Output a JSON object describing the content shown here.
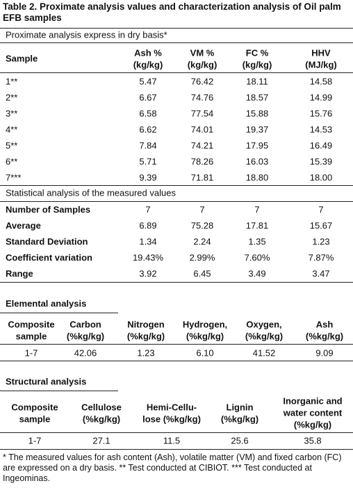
{
  "title": "Table 2. Proximate analysis values and characterization analysis of Oil palm EFB samples",
  "proximate": {
    "caption": "Proximate analysis express in dry basis*",
    "header": [
      [
        "Sample"
      ],
      [
        "Ash %",
        "(kg/kg)"
      ],
      [
        "VM %",
        "(kg/kg)"
      ],
      [
        "FC %",
        "(kg/kg)"
      ],
      [
        "HHV",
        "(MJ/kg)"
      ]
    ],
    "rows": [
      [
        "1**",
        "5.47",
        "76.42",
        "18.11",
        "14.58"
      ],
      [
        "2**",
        "6.67",
        "74.76",
        "18.57",
        "14.99"
      ],
      [
        "3**",
        "6.58",
        "77.54",
        "15.88",
        "15.76"
      ],
      [
        "4**",
        "6.62",
        "74.01",
        "19.37",
        "14.53"
      ],
      [
        "5**",
        "7.84",
        "74.21",
        "17.95",
        "16.49"
      ],
      [
        "6**",
        "5.71",
        "78.26",
        "16.03",
        "15.39"
      ],
      [
        "7***",
        "9.39",
        "71.81",
        "18.80",
        "18.00"
      ]
    ]
  },
  "statistics": {
    "caption": "Statistical analysis of the measured values",
    "rows": [
      [
        "Number of Samples",
        "7",
        "7",
        "7",
        "7"
      ],
      [
        "Average",
        "6.89",
        "75.28",
        "17.81",
        "15.67"
      ],
      [
        "Standard Deviation",
        "1.34",
        "2.24",
        "1.35",
        "1.23"
      ],
      [
        "Coefficient variation",
        "19.43%",
        "2.99%",
        "7.60%",
        "7.87%"
      ],
      [
        "Range",
        "3.92",
        "6.45",
        "3.49",
        "3.47"
      ]
    ]
  },
  "elemental": {
    "title": "Elemental analysis",
    "header": [
      [
        "Composite",
        "sample"
      ],
      [
        "Carbon",
        "(%kg/kg)"
      ],
      [
        "Nitrogen",
        "(%kg/kg)"
      ],
      [
        "Hydrogen,",
        "(%kg/kg)"
      ],
      [
        "Oxygen,",
        "(%kg/kg)"
      ],
      [
        "Ash",
        "(%kg/kg)"
      ]
    ],
    "rows": [
      [
        "1-7",
        "42.06",
        "1.23",
        "6.10",
        "41.52",
        "9.09"
      ]
    ]
  },
  "structural": {
    "title": "Structural analysis",
    "header": [
      [
        "Composite",
        "sample"
      ],
      [
        "Cellulose",
        "(%kg/kg)"
      ],
      [
        "Hemi-Cellu-",
        "lose (%kg/kg)"
      ],
      [
        "Lignin",
        "(%kg/kg)"
      ],
      [
        "Inorganic and",
        "water content",
        "(%kg/kg)"
      ]
    ],
    "rows": [
      [
        "1-7",
        "27.1",
        "11.5",
        "25.6",
        "35.8"
      ]
    ]
  },
  "footnote": "* The measured values for ash content (Ash), volatile matter (VM) and fixed carbon (FC) are expressed on a dry basis. ** Test conducted at CIBIOT. *** Test conducted at Ingeominas."
}
